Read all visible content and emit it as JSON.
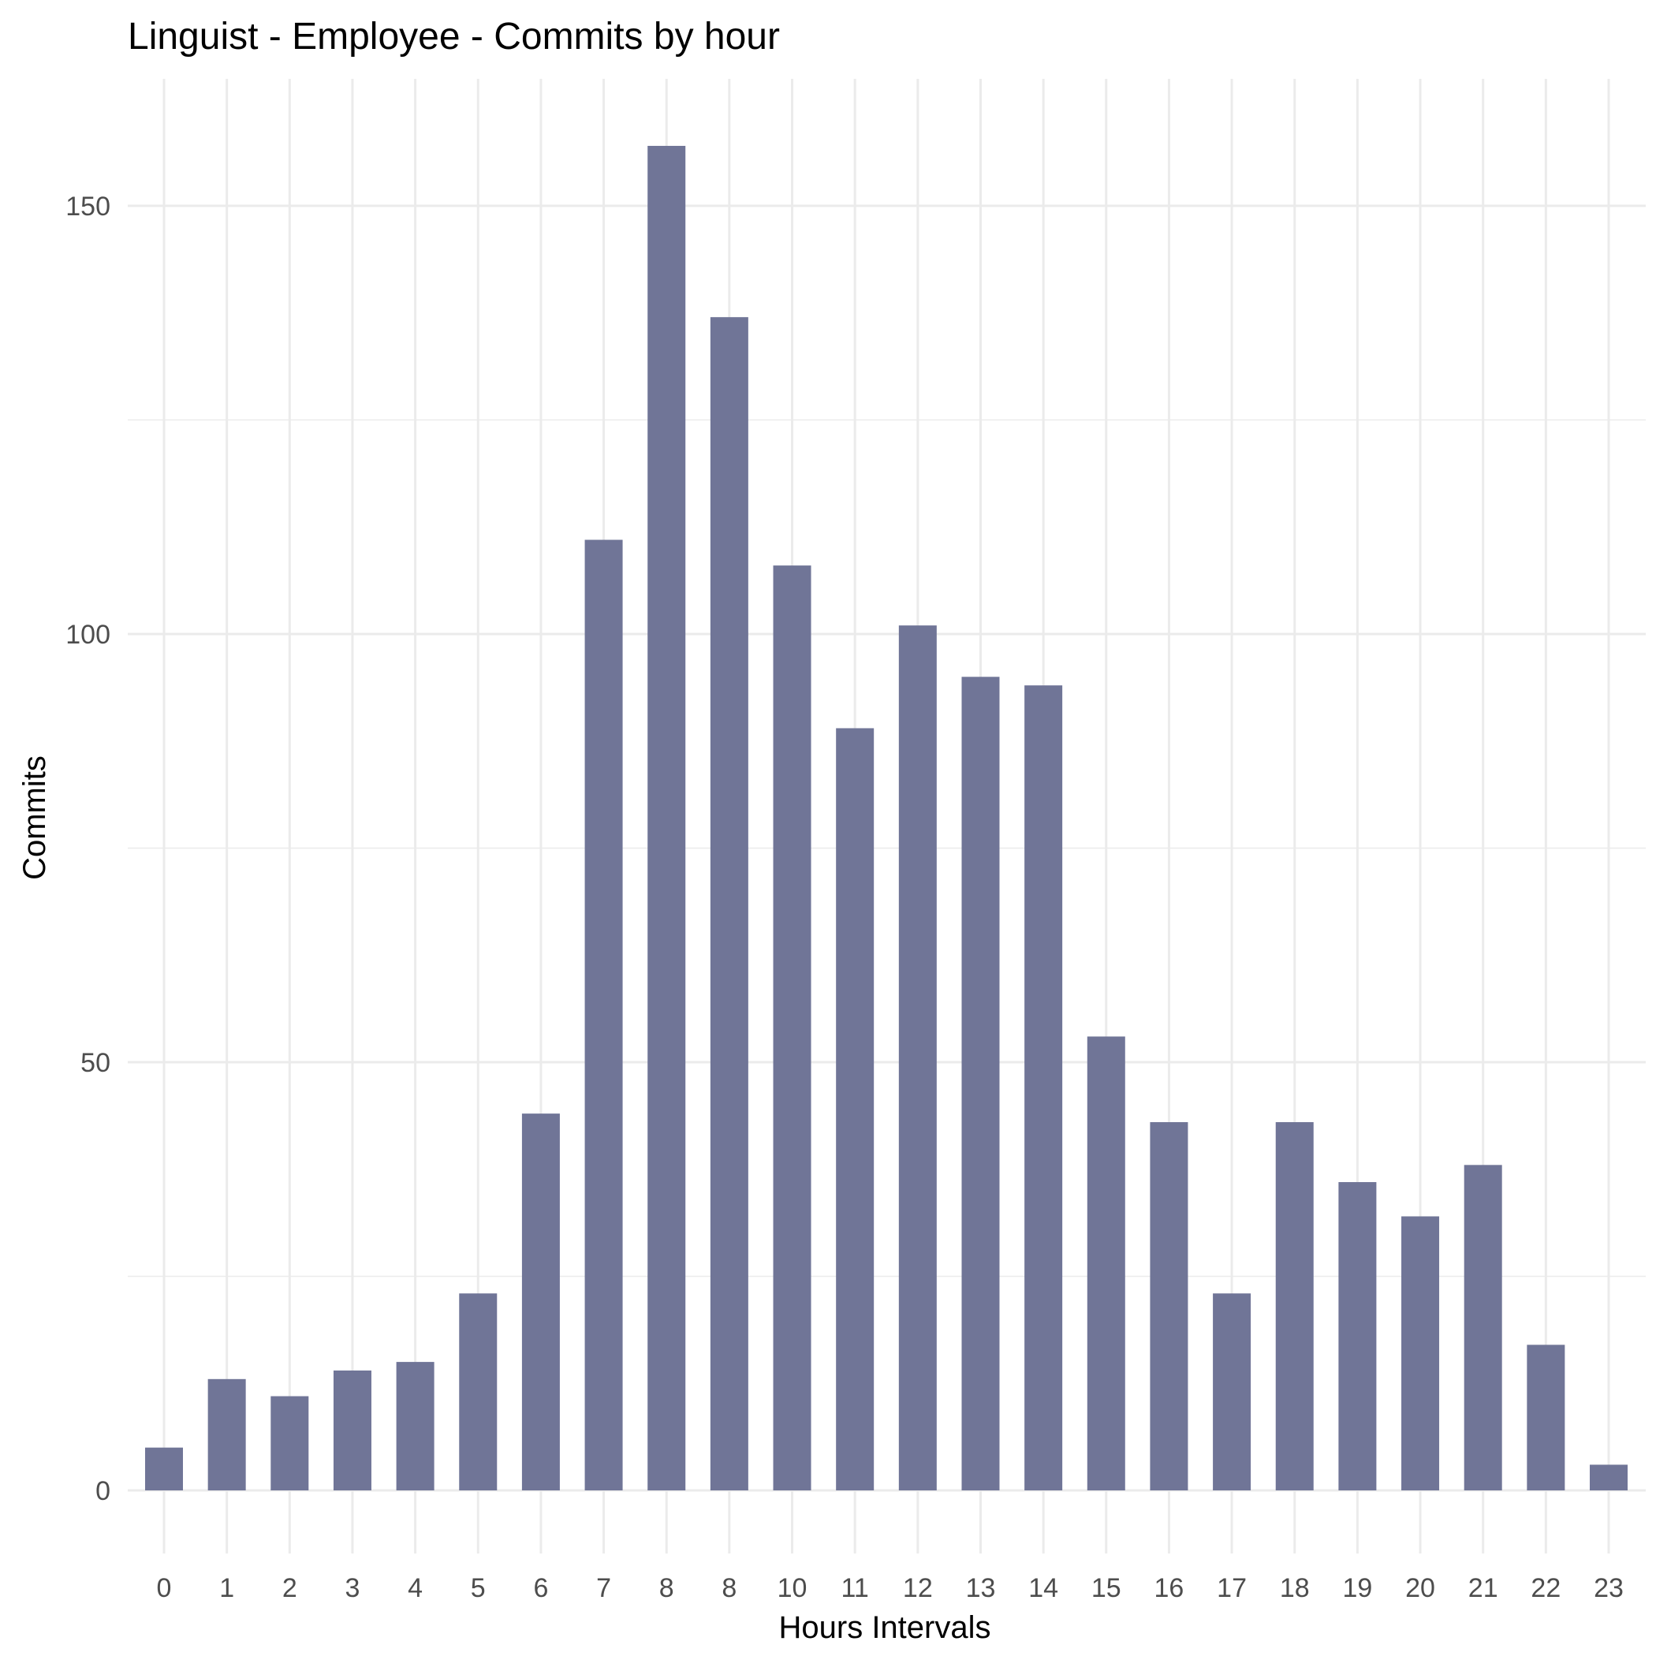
{
  "chart_data": {
    "type": "bar",
    "title": "Linguist - Employee - Commits by hour",
    "xlabel": "Hours Intervals",
    "ylabel": "Commits",
    "categories": [
      "0",
      "1",
      "2",
      "3",
      "4",
      "5",
      "6",
      "7",
      "8",
      "8",
      "10",
      "11",
      "12",
      "13",
      "14",
      "15",
      "16",
      "17",
      "18",
      "19",
      "20",
      "21",
      "22",
      "23"
    ],
    "values": [
      5,
      13,
      11,
      14,
      15,
      23,
      44,
      111,
      157,
      137,
      108,
      89,
      101,
      95,
      94,
      53,
      43,
      23,
      43,
      36,
      32,
      38,
      17,
      3
    ],
    "y_ticks": [
      0,
      50,
      100,
      150
    ],
    "ylim": [
      -6.5,
      166
    ],
    "grid": true,
    "legend": "none",
    "bar_color": "#707597"
  }
}
